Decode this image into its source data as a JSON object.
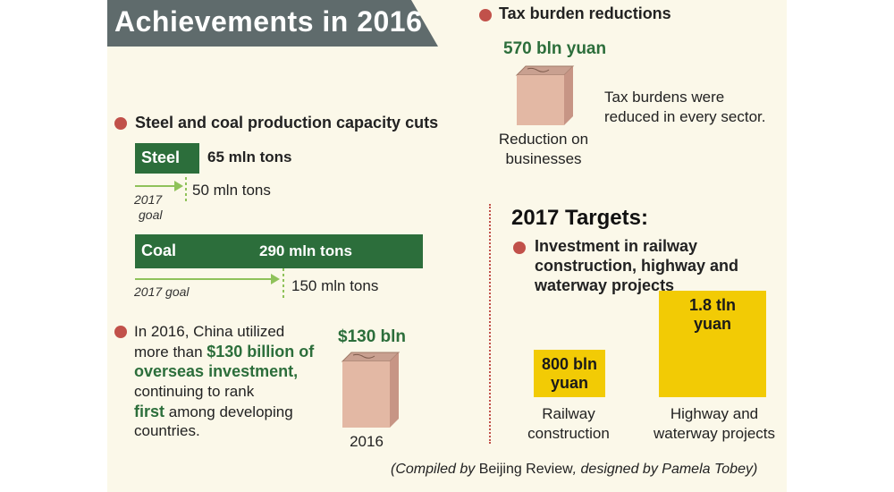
{
  "title": "Achievements in 2016",
  "tax": {
    "heading": "Tax burden reductions",
    "amount": "570 bln yuan",
    "caption_line1": "Reduction on",
    "caption_line2": "businesses",
    "note_line1": "Tax burdens were",
    "note_line2": "reduced in every sector."
  },
  "capacity": {
    "heading": "Steel and coal production capacity cuts",
    "steel": {
      "label": "Steel",
      "value_label": "65 mln tons",
      "goal_label": "50 mln tons",
      "goal_text_line1": "2017",
      "goal_text_line2": "goal"
    },
    "coal": {
      "label": "Coal",
      "value_label": "290 mln tons",
      "goal_label": "150 mln tons",
      "goal_text": "2017 goal"
    }
  },
  "fdi": {
    "line1": "In 2016, China utilized",
    "line2_pre": "more than ",
    "line2_highlight": "$130 billion of",
    "line3_highlight": "overseas investment,",
    "line4": "continuing to rank",
    "line5_highlight": "first",
    "line5_post": " among developing",
    "line6": "countries.",
    "amount": "$130 bln",
    "year": "2016"
  },
  "targets": {
    "heading": "2017 Targets:",
    "sub_line1": "Investment in railway",
    "sub_line2": "construction, highway and",
    "sub_line3": "waterway projects"
  },
  "credit": {
    "pre": "(Compiled by ",
    "source": "Beijing Review",
    "post": ", designed by Pamela Tobey)"
  },
  "colors": {
    "banner": "#5f6b6c",
    "green": "#2c6e3b",
    "arrow": "#8fc25a",
    "dot": "#c1514a",
    "box_front": "#e3b8a4",
    "yellow": "#f2cb05",
    "divider": "#c1514a"
  },
  "chart_data": [
    {
      "type": "bar",
      "title": "Steel and coal production capacity cuts",
      "unit": "mln tons",
      "categories": [
        "Steel",
        "Coal"
      ],
      "series": [
        {
          "values": [
            65,
            290
          ]
        },
        {
          "name": "2017 goal",
          "values": [
            50,
            150
          ]
        }
      ]
    },
    {
      "type": "bar",
      "title": "Investment in railway construction, highway and waterway projects",
      "unit": "bln yuan",
      "categories": [
        "Railway construction",
        "Highway and waterway projects"
      ],
      "values": [
        800,
        1800
      ],
      "value_labels": [
        {
          "line1": "800 bln",
          "line2": "yuan"
        },
        {
          "line1": "1.8 tln",
          "line2": "yuan"
        }
      ],
      "category_labels": [
        {
          "line1": "Railway",
          "line2": "construction"
        },
        {
          "line1": "Highway and",
          "line2": "waterway projects"
        }
      ]
    }
  ]
}
